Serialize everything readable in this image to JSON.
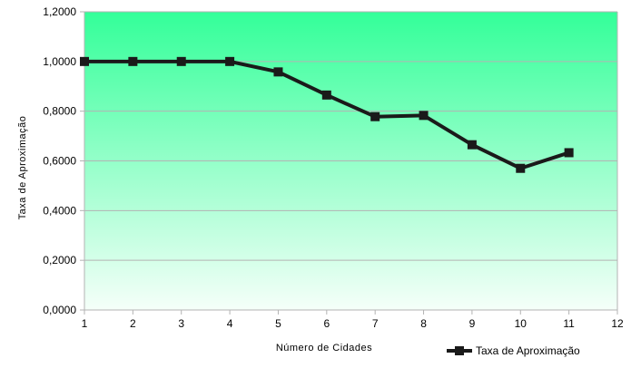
{
  "chart_data": {
    "type": "line",
    "title": "",
    "xlabel": "Número de Cidades",
    "ylabel": "Taxa de Aproximação",
    "xlim": [
      1,
      12
    ],
    "ylim": [
      0,
      1.2
    ],
    "x_ticks": [
      "1",
      "2",
      "3",
      "4",
      "5",
      "6",
      "7",
      "8",
      "9",
      "10",
      "11",
      "12"
    ],
    "y_ticks": [
      "0,0000",
      "0,2000",
      "0,4000",
      "0,6000",
      "0,8000",
      "1,0000",
      "1,2000"
    ],
    "grid": true,
    "legend_position": "bottom-right",
    "series": [
      {
        "name": "Taxa de Aproximação",
        "x": [
          1,
          2,
          3,
          4,
          5,
          6,
          7,
          8,
          9,
          10,
          11
        ],
        "values": [
          1.0,
          1.0,
          1.0,
          1.0,
          0.958,
          0.865,
          0.778,
          0.783,
          0.665,
          0.57,
          0.633
        ]
      }
    ],
    "colors": {
      "background_top": "#33ff99",
      "background_bottom": "#f5fff9",
      "line": "#1a1a1a",
      "grid": "#b3b3b3"
    }
  }
}
